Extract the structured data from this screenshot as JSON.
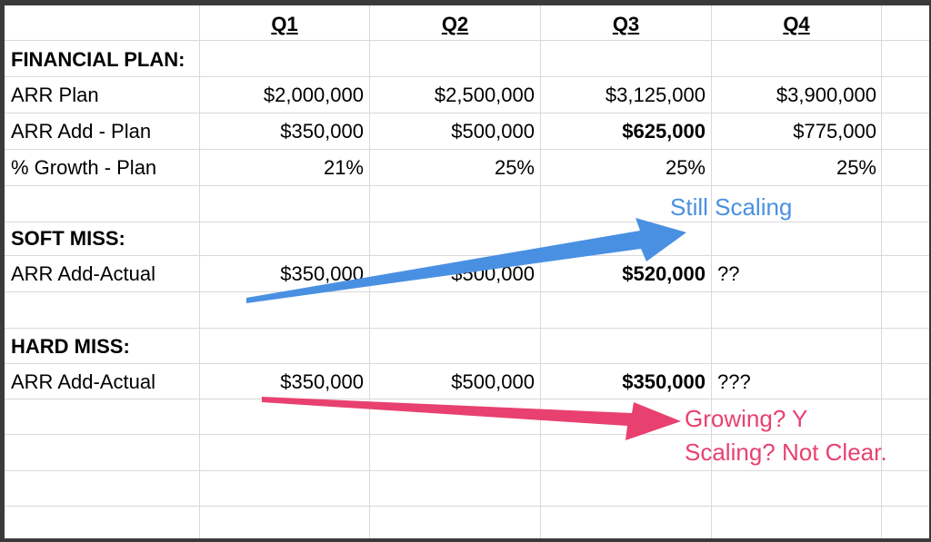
{
  "headers": [
    "Q1",
    "Q2",
    "Q3",
    "Q4"
  ],
  "financial_plan": {
    "title": "FINANCIAL PLAN:",
    "rows": [
      {
        "label": "ARR Plan",
        "values": [
          "$2,000,000",
          "$2,500,000",
          "$3,125,000",
          "$3,900,000"
        ]
      },
      {
        "label": "ARR Add - Plan",
        "values": [
          "$350,000",
          "$500,000",
          "$625,000",
          "$775,000"
        ]
      },
      {
        "label": "% Growth - Plan",
        "values": [
          "21%",
          "25%",
          "25%",
          "25%"
        ]
      }
    ]
  },
  "soft_miss": {
    "title": "SOFT MISS:",
    "row": {
      "label": "ARR Add-Actual",
      "values": [
        "$350,000",
        "$500,000",
        "$520,000",
        "??"
      ]
    }
  },
  "hard_miss": {
    "title": "HARD MISS:",
    "row": {
      "label": "ARR Add-Actual",
      "values": [
        "$350,000",
        "$500,000",
        "$350,000",
        "???"
      ]
    }
  },
  "annotations": {
    "soft": "Still Scaling",
    "hard_line1": "Growing? Y",
    "hard_line2": "Scaling? Not Clear."
  },
  "colors": {
    "soft_arrow": "#4a90e2",
    "hard_arrow": "#e8416f"
  }
}
